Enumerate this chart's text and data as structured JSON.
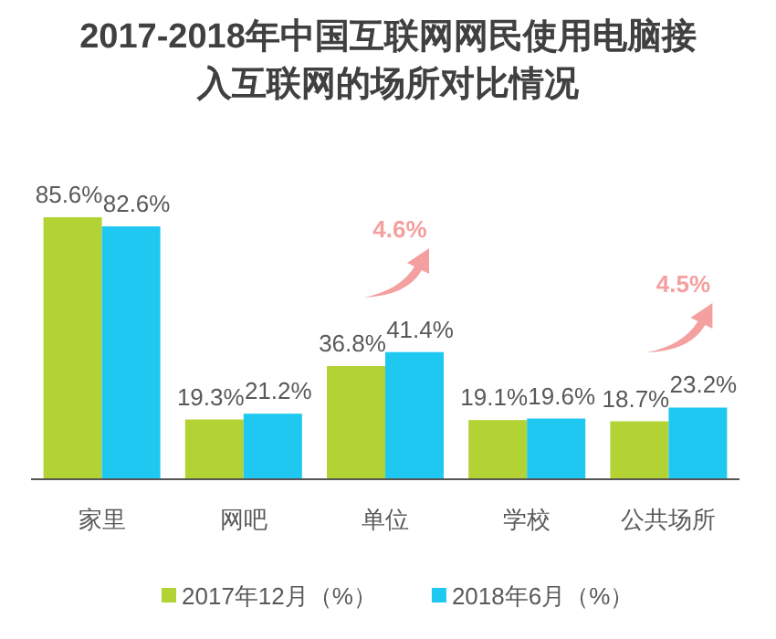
{
  "chart_data": {
    "type": "bar",
    "title": "2017-2018年中国互联网网民使用电脑接入互联网的场所对比情况",
    "categories": [
      "家里",
      "网吧",
      "单位",
      "学校",
      "公共场所"
    ],
    "series": [
      {
        "name": "2017年12月（%）",
        "color": "#b3d233",
        "values": [
          85.6,
          19.3,
          36.8,
          19.1,
          18.7
        ],
        "value_labels": [
          "85.6%",
          "19.3%",
          "36.8%",
          "19.1%",
          "18.7%"
        ]
      },
      {
        "name": "2018年6月（%）",
        "color": "#1fc8f0",
        "values": [
          82.6,
          21.2,
          41.4,
          19.6,
          23.2
        ],
        "value_labels": [
          "82.6%",
          "21.2%",
          "41.4%",
          "19.6%",
          "23.2%"
        ]
      }
    ],
    "annotations": [
      "4.6%",
      "4.5%"
    ],
    "legend": "bottom",
    "grid": false
  }
}
